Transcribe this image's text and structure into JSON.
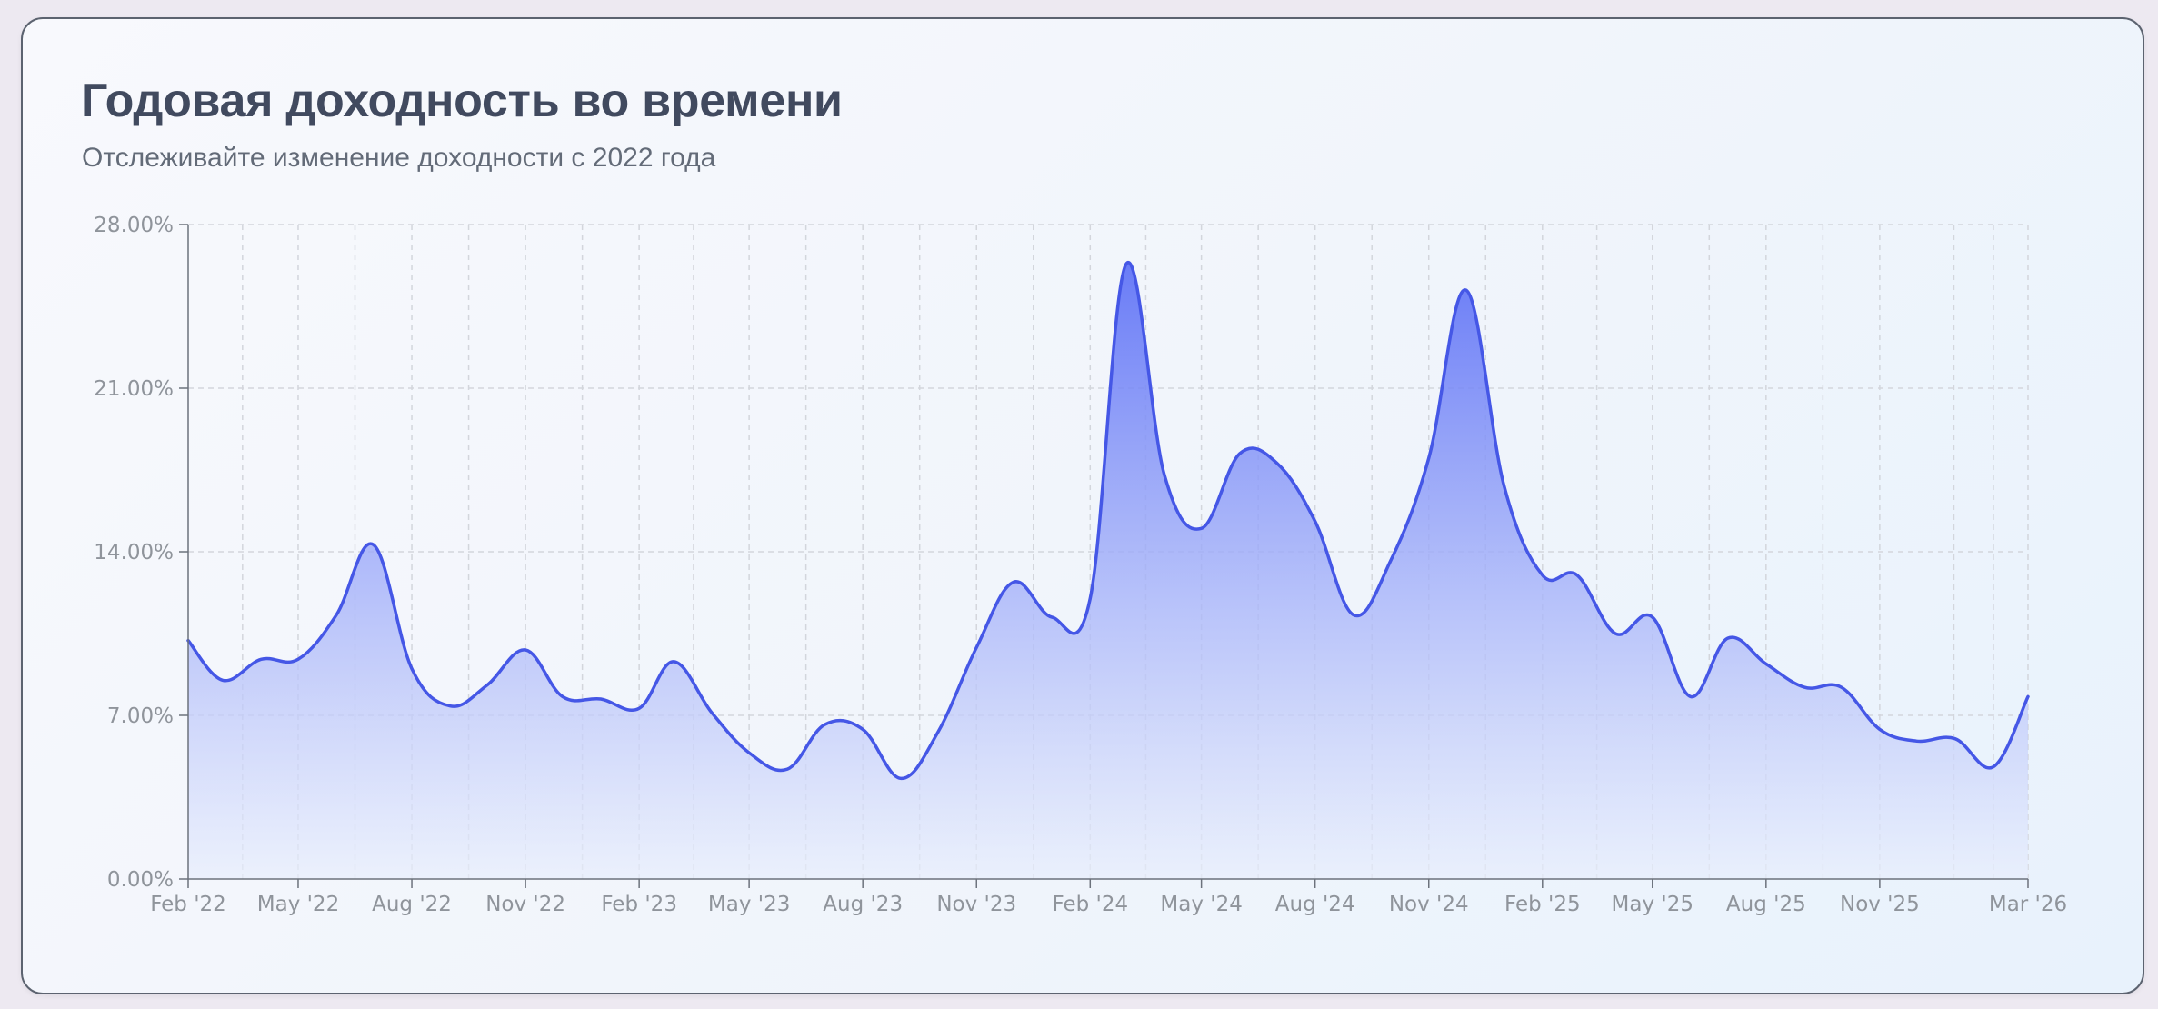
{
  "card": {
    "title": "Годовая доходность во времени",
    "subtitle": "Отслеживайте изменение доходности с 2022 года"
  },
  "colors": {
    "line": "#4557e6",
    "fill_top": "#5a6ef6",
    "fill_bottom": "#e8eefc",
    "grid": "#d3d6dc",
    "axis": "#6c727c",
    "tick_label": "#8f949b"
  },
  "chart_data": {
    "type": "area",
    "title": "Годовая доходность во времени",
    "subtitle": "Отслеживайте изменение доходности с 2022 года",
    "xlabel": "",
    "ylabel": "",
    "xlim": [
      "2022-02-01",
      "2026-03-01"
    ],
    "ylim": [
      0,
      28
    ],
    "grid": true,
    "legend": "none",
    "y_ticks": [
      0,
      7,
      14,
      21,
      28
    ],
    "y_tick_labels": [
      "0.00%",
      "7.00%",
      "14.00%",
      "21.00%",
      "28.00%"
    ],
    "x_ticks": [
      "2022-02-01",
      "2022-05-01",
      "2022-08-01",
      "2022-11-01",
      "2023-02-01",
      "2023-05-01",
      "2023-08-01",
      "2023-11-01",
      "2024-02-01",
      "2024-05-01",
      "2024-08-01",
      "2024-11-01",
      "2025-02-01",
      "2025-05-01",
      "2025-08-01",
      "2025-11-01",
      "2026-03-01"
    ],
    "x_tick_labels": [
      "Feb '22",
      "May '22",
      "Aug '22",
      "Nov '22",
      "Feb '23",
      "May '23",
      "Aug '23",
      "Nov '23",
      "Feb '24",
      "May '24",
      "Aug '24",
      "Nov '24",
      "Feb '25",
      "May '25",
      "Aug '25",
      "Nov '25",
      "Mar '26"
    ],
    "series": [
      {
        "x": [
          "2022-02-01",
          "2022-03-01",
          "2022-04-01",
          "2022-05-01",
          "2022-06-01",
          "2022-07-01",
          "2022-08-01",
          "2022-09-01",
          "2022-10-01",
          "2022-11-01",
          "2022-12-01",
          "2023-01-01",
          "2023-02-01",
          "2023-03-01",
          "2023-04-01",
          "2023-05-01",
          "2023-06-01",
          "2023-07-01",
          "2023-08-01",
          "2023-09-01",
          "2023-10-01",
          "2023-11-01",
          "2023-12-01",
          "2024-01-01",
          "2024-02-01",
          "2024-03-01",
          "2024-04-01",
          "2024-05-01",
          "2024-06-01",
          "2024-07-01",
          "2024-08-01",
          "2024-09-01",
          "2024-10-01",
          "2024-11-01",
          "2024-12-01",
          "2025-01-01",
          "2025-02-01",
          "2025-03-01",
          "2025-04-01",
          "2025-05-01",
          "2025-06-01",
          "2025-07-01",
          "2025-08-01",
          "2025-09-01",
          "2025-10-01",
          "2025-11-01",
          "2025-12-01",
          "2026-01-01",
          "2026-02-01",
          "2026-03-01"
        ],
        "values": [
          10.2,
          8.5,
          9.4,
          9.4,
          11.3,
          14.3,
          9.0,
          7.4,
          8.3,
          9.8,
          7.8,
          7.7,
          7.3,
          9.3,
          7.1,
          5.4,
          4.7,
          6.6,
          6.4,
          4.3,
          6.3,
          9.9,
          12.7,
          11.2,
          12.0,
          26.3,
          17.3,
          15.0,
          18.2,
          17.8,
          15.3,
          11.3,
          13.6,
          18.0,
          25.2,
          16.8,
          13.0,
          13.0,
          10.5,
          11.2,
          7.8,
          10.3,
          9.2,
          8.2,
          8.2,
          6.4,
          5.9,
          6.0,
          4.8,
          7.8
        ]
      }
    ]
  }
}
